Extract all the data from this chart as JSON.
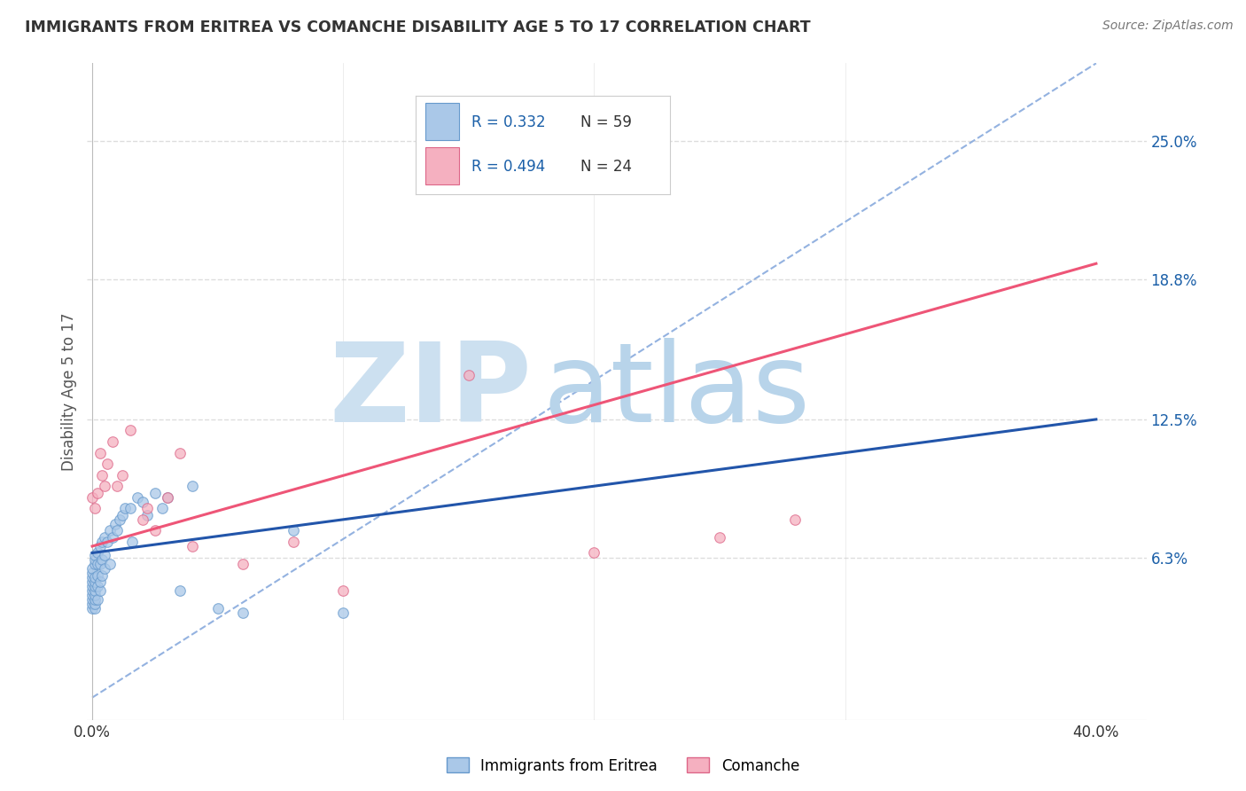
{
  "title": "IMMIGRANTS FROM ERITREA VS COMANCHE DISABILITY AGE 5 TO 17 CORRELATION CHART",
  "source_text": "Source: ZipAtlas.com",
  "ylabel": "Disability Age 5 to 17",
  "xlim": [
    -0.002,
    0.42
  ],
  "ylim": [
    -0.01,
    0.285
  ],
  "ytick_positions": [
    0.063,
    0.125,
    0.188,
    0.25
  ],
  "ytick_labels": [
    "6.3%",
    "12.5%",
    "18.8%",
    "25.0%"
  ],
  "series": [
    {
      "name": "Immigrants from Eritrea",
      "R": 0.332,
      "N": 59,
      "color": "#aac8e8",
      "edge_color": "#6699cc",
      "marker_size": 70,
      "x": [
        0.0,
        0.0,
        0.0,
        0.0,
        0.0,
        0.0,
        0.0,
        0.0,
        0.0,
        0.0,
        0.001,
        0.001,
        0.001,
        0.001,
        0.001,
        0.001,
        0.001,
        0.001,
        0.001,
        0.001,
        0.001,
        0.002,
        0.002,
        0.002,
        0.002,
        0.002,
        0.003,
        0.003,
        0.003,
        0.003,
        0.004,
        0.004,
        0.004,
        0.005,
        0.005,
        0.005,
        0.006,
        0.007,
        0.007,
        0.008,
        0.009,
        0.01,
        0.011,
        0.012,
        0.013,
        0.015,
        0.016,
        0.018,
        0.02,
        0.022,
        0.025,
        0.028,
        0.03,
        0.035,
        0.04,
        0.05,
        0.06,
        0.08,
        0.1
      ],
      "y": [
        0.04,
        0.042,
        0.044,
        0.046,
        0.048,
        0.05,
        0.052,
        0.054,
        0.056,
        0.058,
        0.04,
        0.042,
        0.044,
        0.046,
        0.048,
        0.05,
        0.052,
        0.054,
        0.06,
        0.062,
        0.064,
        0.044,
        0.05,
        0.055,
        0.06,
        0.065,
        0.048,
        0.052,
        0.06,
        0.068,
        0.055,
        0.062,
        0.07,
        0.058,
        0.064,
        0.072,
        0.07,
        0.06,
        0.075,
        0.072,
        0.078,
        0.075,
        0.08,
        0.082,
        0.085,
        0.085,
        0.07,
        0.09,
        0.088,
        0.082,
        0.092,
        0.085,
        0.09,
        0.048,
        0.095,
        0.04,
        0.038,
        0.075,
        0.038
      ],
      "trend_x": [
        0.0,
        0.4
      ],
      "trend_y": [
        0.065,
        0.125
      ]
    },
    {
      "name": "Comanche",
      "R": 0.494,
      "N": 24,
      "color": "#f5b0c0",
      "edge_color": "#dd6688",
      "marker_size": 70,
      "x": [
        0.0,
        0.001,
        0.002,
        0.003,
        0.004,
        0.005,
        0.006,
        0.008,
        0.01,
        0.012,
        0.015,
        0.02,
        0.022,
        0.025,
        0.03,
        0.035,
        0.04,
        0.06,
        0.08,
        0.1,
        0.15,
        0.2,
        0.25,
        0.28
      ],
      "y": [
        0.09,
        0.085,
        0.092,
        0.11,
        0.1,
        0.095,
        0.105,
        0.115,
        0.095,
        0.1,
        0.12,
        0.08,
        0.085,
        0.075,
        0.09,
        0.11,
        0.068,
        0.06,
        0.07,
        0.048,
        0.145,
        0.065,
        0.072,
        0.08
      ],
      "trend_x": [
        0.0,
        0.4
      ],
      "trend_y": [
        0.068,
        0.195
      ]
    }
  ],
  "ref_line": {
    "x": [
      0.0,
      0.4
    ],
    "y": [
      0.0,
      0.285
    ],
    "color": "#88aadd",
    "linestyle": "--"
  },
  "watermark_zip": "ZIP",
  "watermark_atlas": "atlas",
  "watermark_color_zip": "#cce0f0",
  "watermark_color_atlas": "#b8d4ea",
  "legend_R_color": "#1a5fa8",
  "legend_N_color": "#333333",
  "background_color": "#ffffff",
  "grid_color": "#dddddd",
  "title_color": "#333333",
  "axis_label_color": "#555555",
  "ytick_color": "#1a5fa8",
  "xtick_color": "#333333"
}
